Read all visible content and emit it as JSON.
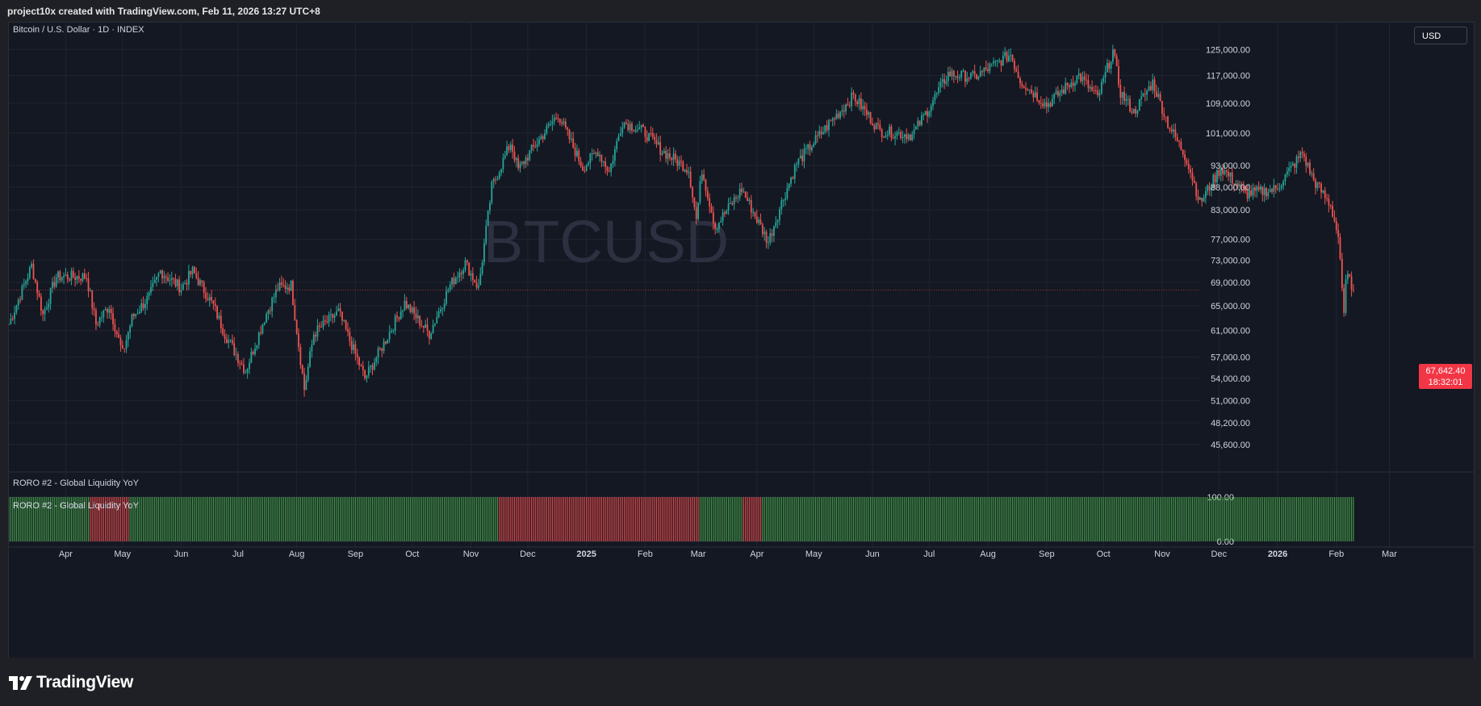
{
  "header": {
    "attribution": "project10x created with TradingView.com, Feb 11, 2026 13:27 UTC+8"
  },
  "main_pane": {
    "legend": "Bitcoin / U.S. Dollar · 1D · INDEX",
    "watermark": "BTCUSD",
    "currency_button": "USD",
    "last_price": "67,642.40",
    "countdown": "18:32:01"
  },
  "indicator_pane": {
    "legend": "RORO #2 - Global Liquidity YoY",
    "inline_label": "RORO #2 - Global Liquidity YoY"
  },
  "footer": {
    "brand": "TradingView"
  },
  "colors": {
    "background": "#141822",
    "grid": "#1f2433",
    "up": "#26a69a",
    "down": "#ef5350",
    "indicator_up": "#4caf50",
    "indicator_down": "#ff5252",
    "badge": "#f23645"
  },
  "chart_data": [
    {
      "type": "candlestick",
      "title": "Bitcoin / U.S. Dollar · 1D · INDEX",
      "y_axis_scale": "log",
      "ylim": [
        44000,
        130000
      ],
      "y_ticks": [
        {
          "value": 125000,
          "label": "125,000.00"
        },
        {
          "value": 117000,
          "label": "117,000.00"
        },
        {
          "value": 109000,
          "label": "109,000.00"
        },
        {
          "value": 101000,
          "label": "101,000.00"
        },
        {
          "value": 93000,
          "label": "93,000.00"
        },
        {
          "value": 88000,
          "label": "88,000.00"
        },
        {
          "value": 83000,
          "label": "83,000.00"
        },
        {
          "value": 77000,
          "label": "77,000.00"
        },
        {
          "value": 73000,
          "label": "73,000.00"
        },
        {
          "value": 69000,
          "label": "69,000.00"
        },
        {
          "value": 65000,
          "label": "65,000.00"
        },
        {
          "value": 61000,
          "label": "61,000.00"
        },
        {
          "value": 57000,
          "label": "57,000.00"
        },
        {
          "value": 54000,
          "label": "54,000.00"
        },
        {
          "value": 51000,
          "label": "51,000.00"
        },
        {
          "value": 48200,
          "label": "48,200.00"
        },
        {
          "value": 45600,
          "label": "45,600.00"
        }
      ],
      "x_ticks": [
        {
          "date": "2024-04-01",
          "label": "Apr",
          "bold": false
        },
        {
          "date": "2024-05-01",
          "label": "May",
          "bold": false
        },
        {
          "date": "2024-06-01",
          "label": "Jun",
          "bold": false
        },
        {
          "date": "2024-07-01",
          "label": "Jul",
          "bold": false
        },
        {
          "date": "2024-08-01",
          "label": "Aug",
          "bold": false
        },
        {
          "date": "2024-09-01",
          "label": "Sep",
          "bold": false
        },
        {
          "date": "2024-10-01",
          "label": "Oct",
          "bold": false
        },
        {
          "date": "2024-11-01",
          "label": "Nov",
          "bold": false
        },
        {
          "date": "2024-12-01",
          "label": "Dec",
          "bold": false
        },
        {
          "date": "2025-01-01",
          "label": "2025",
          "bold": true
        },
        {
          "date": "2025-02-01",
          "label": "Feb",
          "bold": false
        },
        {
          "date": "2025-03-01",
          "label": "Mar",
          "bold": false
        },
        {
          "date": "2025-04-01",
          "label": "Apr",
          "bold": false
        },
        {
          "date": "2025-05-01",
          "label": "May",
          "bold": false
        },
        {
          "date": "2025-06-01",
          "label": "Jun",
          "bold": false
        },
        {
          "date": "2025-07-01",
          "label": "Jul",
          "bold": false
        },
        {
          "date": "2025-08-01",
          "label": "Aug",
          "bold": false
        },
        {
          "date": "2025-09-01",
          "label": "Sep",
          "bold": false
        },
        {
          "date": "2025-10-01",
          "label": "Oct",
          "bold": false
        },
        {
          "date": "2025-11-01",
          "label": "Nov",
          "bold": false
        },
        {
          "date": "2025-12-01",
          "label": "Dec",
          "bold": false
        },
        {
          "date": "2026-01-01",
          "label": "2026",
          "bold": true
        },
        {
          "date": "2026-02-01",
          "label": "Feb",
          "bold": false
        },
        {
          "date": "2026-03-01",
          "label": "Mar",
          "bold": false
        }
      ],
      "x_range": [
        "2024-03-02",
        "2026-03-14"
      ],
      "series": [
        {
          "name": "BTCUSD",
          "close_trend": [
            [
              "2024-03-02",
              62000
            ],
            [
              "2024-03-14",
              72000
            ],
            [
              "2024-03-20",
              63500
            ],
            [
              "2024-03-27",
              70000
            ],
            [
              "2024-04-12",
              70000
            ],
            [
              "2024-04-17",
              62000
            ],
            [
              "2024-04-24",
              65000
            ],
            [
              "2024-05-01",
              57500
            ],
            [
              "2024-05-06",
              63000
            ],
            [
              "2024-05-15",
              66500
            ],
            [
              "2024-05-21",
              71000
            ],
            [
              "2024-06-01",
              68000
            ],
            [
              "2024-06-07",
              71000
            ],
            [
              "2024-06-18",
              65000
            ],
            [
              "2024-06-24",
              60500
            ],
            [
              "2024-07-05",
              55000
            ],
            [
              "2024-07-15",
              63000
            ],
            [
              "2024-07-22",
              68000
            ],
            [
              "2024-07-29",
              68500
            ],
            [
              "2024-08-05",
              52500
            ],
            [
              "2024-08-10",
              60500
            ],
            [
              "2024-08-23",
              64000
            ],
            [
              "2024-09-06",
              54000
            ],
            [
              "2024-09-15",
              58500
            ],
            [
              "2024-09-27",
              65500
            ],
            [
              "2024-10-10",
              60500
            ],
            [
              "2024-10-21",
              68500
            ],
            [
              "2024-10-29",
              72500
            ],
            [
              "2024-11-05",
              68000
            ],
            [
              "2024-11-12",
              88000
            ],
            [
              "2024-11-22",
              98500
            ],
            [
              "2024-11-26",
              92000
            ],
            [
              "2024-12-05",
              98000
            ],
            [
              "2024-12-17",
              106000
            ],
            [
              "2024-12-30",
              92500
            ],
            [
              "2025-01-07",
              96500
            ],
            [
              "2025-01-13",
              91500
            ],
            [
              "2025-01-20",
              104000
            ],
            [
              "2025-01-31",
              101500
            ],
            [
              "2025-02-10",
              96500
            ],
            [
              "2025-02-24",
              92000
            ],
            [
              "2025-02-28",
              81000
            ],
            [
              "2025-03-03",
              92000
            ],
            [
              "2025-03-10",
              79500
            ],
            [
              "2025-03-24",
              87500
            ],
            [
              "2025-04-07",
              76500
            ],
            [
              "2025-04-14",
              84500
            ],
            [
              "2025-04-22",
              93500
            ],
            [
              "2025-05-10",
              104000
            ],
            [
              "2025-05-22",
              111000
            ],
            [
              "2025-06-05",
              101500
            ],
            [
              "2025-06-22",
              100500
            ],
            [
              "2025-06-30",
              107000
            ],
            [
              "2025-07-11",
              117500
            ],
            [
              "2025-07-25",
              116500
            ],
            [
              "2025-08-13",
              123500
            ],
            [
              "2025-08-18",
              115500
            ],
            [
              "2025-09-01",
              108500
            ],
            [
              "2025-09-18",
              117000
            ],
            [
              "2025-09-28",
              110500
            ],
            [
              "2025-10-06",
              124500
            ],
            [
              "2025-10-10",
              112000
            ],
            [
              "2025-10-17",
              106500
            ],
            [
              "2025-10-27",
              115000
            ],
            [
              "2025-11-04",
              103500
            ],
            [
              "2025-11-14",
              94500
            ],
            [
              "2025-11-21",
              84500
            ],
            [
              "2025-12-02",
              92500
            ],
            [
              "2025-12-15",
              86500
            ],
            [
              "2025-12-31",
              87500
            ],
            [
              "2026-01-14",
              96000
            ],
            [
              "2026-01-20",
              89500
            ],
            [
              "2026-01-29",
              84000
            ],
            [
              "2026-02-02",
              77500
            ],
            [
              "2026-02-05",
              63000
            ],
            [
              "2026-02-06",
              70500
            ],
            [
              "2026-02-10",
              67642
            ]
          ],
          "last": 67642.4
        }
      ]
    },
    {
      "type": "bar",
      "title": "RORO #2 - Global Liquidity YoY",
      "ylim": [
        0,
        100
      ],
      "y_ticks": [
        {
          "value": 100,
          "label": "100.00"
        },
        {
          "value": 0,
          "label": "0.00"
        }
      ],
      "series": [
        {
          "name": "RORO #2 - Global Liquidity YoY",
          "value": 100,
          "segments": [
            {
              "from": "2024-03-02",
              "to": "2024-04-13",
              "state": "positive"
            },
            {
              "from": "2024-04-14",
              "to": "2024-05-04",
              "state": "negative"
            },
            {
              "from": "2024-05-05",
              "to": "2024-11-15",
              "state": "positive"
            },
            {
              "from": "2024-11-16",
              "to": "2025-03-01",
              "state": "negative"
            },
            {
              "from": "2025-03-02",
              "to": "2025-03-24",
              "state": "positive"
            },
            {
              "from": "2025-03-25",
              "to": "2025-04-03",
              "state": "negative"
            },
            {
              "from": "2025-04-04",
              "to": "2026-02-10",
              "state": "positive"
            }
          ]
        }
      ]
    }
  ]
}
